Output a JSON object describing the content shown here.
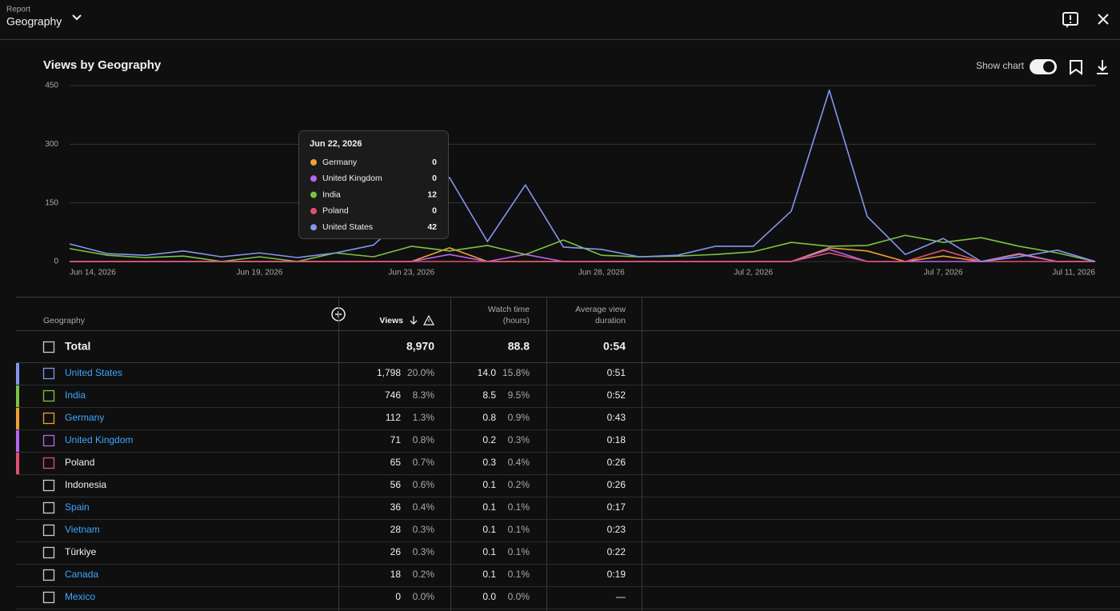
{
  "header": {
    "overline": "Report",
    "title": "Geography"
  },
  "chart_data": {
    "type": "line",
    "title": "Views by Geography",
    "toggle_label": "Show chart",
    "x": [
      "Jun 14, 2026",
      "Jun 15, 2026",
      "Jun 16, 2026",
      "Jun 17, 2026",
      "Jun 18, 2026",
      "Jun 19, 2026",
      "Jun 20, 2026",
      "Jun 21, 2026",
      "Jun 22, 2026",
      "Jun 23, 2026",
      "Jun 24, 2026",
      "Jun 25, 2026",
      "Jun 26, 2026",
      "Jun 27, 2026",
      "Jun 28, 2026",
      "Jun 29, 2026",
      "Jun 30, 2026",
      "Jul 1, 2026",
      "Jul 2, 2026",
      "Jul 3, 2026",
      "Jul 4, 2026",
      "Jul 5, 2026",
      "Jul 6, 2026",
      "Jul 7, 2026",
      "Jul 8, 2026",
      "Jul 9, 2026",
      "Jul 10, 2026",
      "Jul 11, 2026"
    ],
    "xticks": [
      "Jun 14, 2026",
      "Jun 19, 2026",
      "Jun 23, 2026",
      "Jun 28, 2026",
      "Jul 2, 2026",
      "Jul 7, 2026",
      "Jul 11, 2026"
    ],
    "ylim": [
      0,
      450
    ],
    "yticks": [
      0,
      150,
      300,
      450
    ],
    "grid": true,
    "series": [
      {
        "name": "Germany",
        "color": "#f0a030",
        "values": [
          0,
          0,
          0,
          0,
          0,
          0,
          0,
          0,
          0,
          0,
          35,
          0,
          0,
          0,
          0,
          0,
          0,
          0,
          0,
          0,
          35,
          27,
          0,
          14,
          0,
          20,
          0,
          0
        ]
      },
      {
        "name": "United Kingdom",
        "color": "#b865f0",
        "values": [
          0,
          0,
          0,
          0,
          0,
          0,
          0,
          0,
          0,
          0,
          18,
          0,
          18,
          0,
          0,
          0,
          0,
          0,
          0,
          0,
          31,
          0,
          0,
          0,
          0,
          18,
          0,
          0
        ]
      },
      {
        "name": "India",
        "color": "#7cc242",
        "values": [
          33,
          16,
          10,
          14,
          0,
          12,
          0,
          22,
          12,
          39,
          27,
          41,
          18,
          55,
          16,
          12,
          14,
          18,
          25,
          49,
          39,
          41,
          67,
          49,
          61,
          39,
          22,
          0
        ]
      },
      {
        "name": "Poland",
        "color": "#e0506e",
        "values": [
          0,
          0,
          0,
          0,
          0,
          0,
          0,
          0,
          0,
          0,
          0,
          0,
          0,
          0,
          0,
          0,
          0,
          0,
          0,
          0,
          22,
          0,
          0,
          29,
          0,
          0,
          0,
          0
        ]
      },
      {
        "name": "United States",
        "color": "#8496f0",
        "values": [
          45,
          20,
          16,
          27,
          12,
          22,
          10,
          22,
          42,
          130,
          215,
          51,
          196,
          37,
          31,
          12,
          16,
          39,
          39,
          129,
          438,
          115,
          18,
          59,
          0,
          12,
          29,
          0
        ]
      }
    ],
    "tooltip": {
      "date": "Jun 22, 2026"
    }
  },
  "table": {
    "columns": [
      [
        "Geography"
      ],
      [
        "Views"
      ],
      [
        "Watch time",
        "(hours)"
      ],
      [
        "Average view",
        "duration"
      ]
    ],
    "total": {
      "name": "Total",
      "views": "8,970",
      "watch": "88.8",
      "avg": "0:54"
    },
    "rows": [
      {
        "name": "United States",
        "link": true,
        "views": "1,798",
        "views_pct": "20.0%",
        "watch": "14.0",
        "watch_pct": "15.8%",
        "avg": "0:51"
      },
      {
        "name": "India",
        "link": true,
        "views": "746",
        "views_pct": "8.3%",
        "watch": "8.5",
        "watch_pct": "9.5%",
        "avg": "0:52"
      },
      {
        "name": "Germany",
        "link": true,
        "views": "112",
        "views_pct": "1.3%",
        "watch": "0.8",
        "watch_pct": "0.9%",
        "avg": "0:43"
      },
      {
        "name": "United Kingdom",
        "link": true,
        "views": "71",
        "views_pct": "0.8%",
        "watch": "0.2",
        "watch_pct": "0.3%",
        "avg": "0:18"
      },
      {
        "name": "Poland",
        "link": false,
        "views": "65",
        "views_pct": "0.7%",
        "watch": "0.3",
        "watch_pct": "0.4%",
        "avg": "0:26"
      },
      {
        "name": "Indonesia",
        "link": false,
        "views": "56",
        "views_pct": "0.6%",
        "watch": "0.1",
        "watch_pct": "0.2%",
        "avg": "0:26"
      },
      {
        "name": "Spain",
        "link": true,
        "views": "36",
        "views_pct": "0.4%",
        "watch": "0.1",
        "watch_pct": "0.1%",
        "avg": "0:17"
      },
      {
        "name": "Vietnam",
        "link": true,
        "views": "28",
        "views_pct": "0.3%",
        "watch": "0.1",
        "watch_pct": "0.1%",
        "avg": "0:23"
      },
      {
        "name": "Türkiye",
        "link": false,
        "views": "26",
        "views_pct": "0.3%",
        "watch": "0.1",
        "watch_pct": "0.1%",
        "avg": "0:22"
      },
      {
        "name": "Canada",
        "link": true,
        "views": "18",
        "views_pct": "0.2%",
        "watch": "0.1",
        "watch_pct": "0.1%",
        "avg": "0:19"
      },
      {
        "name": "Mexico",
        "link": true,
        "views": "0",
        "views_pct": "0.0%",
        "watch": "0.0",
        "watch_pct": "0.0%",
        "avg": "—"
      }
    ]
  }
}
